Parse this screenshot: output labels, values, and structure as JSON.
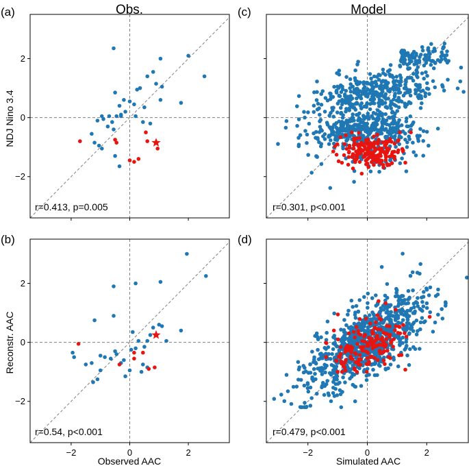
{
  "figure": {
    "column_titles": [
      "Obs.",
      "Model"
    ],
    "colors": {
      "blue": "#1f77b4",
      "red": "#e8140f",
      "axis": "#000000",
      "guide": "#7f7f7f"
    }
  },
  "chart_data": [
    {
      "panel": "(a)",
      "type": "scatter",
      "column_title": "Obs.",
      "xlabel": "",
      "ylabel": "NDJ Nino 3.4",
      "xlim": [
        -3.4,
        3.4
      ],
      "ylim": [
        -3.4,
        3.5
      ],
      "xticks": [
        -2,
        0,
        2
      ],
      "yticks": [
        -2,
        0,
        2
      ],
      "show_xticklabels": false,
      "stats": "r=0.413, p=0.005",
      "series": [
        {
          "name": "blue",
          "color": "#1f77b4",
          "points": [
            [
              -0.7,
              0.05
            ],
            [
              -0.45,
              0.05
            ],
            [
              -0.3,
              0.05
            ],
            [
              -0.9,
              -0.05
            ],
            [
              -1.1,
              -0.1
            ],
            [
              -0.6,
              -0.15
            ],
            [
              -0.75,
              -0.3
            ],
            [
              -0.55,
              -0.4
            ],
            [
              -1.3,
              -0.55
            ],
            [
              -1.2,
              -0.85
            ],
            [
              -1.05,
              -0.95
            ],
            [
              -0.95,
              -1.05
            ],
            [
              -0.5,
              -1.3
            ],
            [
              -0.35,
              -1.65
            ],
            [
              -0.5,
              0.85
            ],
            [
              -0.2,
              0.6
            ],
            [
              0.0,
              0.55
            ],
            [
              0.15,
              0.45
            ],
            [
              0.25,
              0.95
            ],
            [
              0.35,
              1.0
            ],
            [
              0.6,
              1.4
            ],
            [
              0.8,
              1.55
            ],
            [
              0.9,
              1.15
            ],
            [
              1.1,
              1.05
            ],
            [
              1.05,
              2.0
            ],
            [
              1.05,
              0.6
            ],
            [
              -0.3,
              0.1
            ],
            [
              -0.15,
              0.2
            ],
            [
              0.2,
              0.05
            ],
            [
              -0.55,
              2.35
            ],
            [
              0.45,
              -0.15
            ],
            [
              0.5,
              0.35
            ],
            [
              0.7,
              -0.2
            ],
            [
              1.75,
              0.5
            ],
            [
              2.0,
              2.1
            ],
            [
              2.55,
              1.4
            ],
            [
              -0.35,
              0.4
            ],
            [
              -0.95,
              0.05
            ]
          ]
        },
        {
          "name": "red",
          "color": "#e8140f",
          "points": [
            [
              -1.7,
              -0.8
            ],
            [
              -0.5,
              -0.75
            ],
            [
              -0.45,
              -0.85
            ],
            [
              0.0,
              -1.45
            ],
            [
              0.15,
              -1.5
            ],
            [
              0.3,
              -1.4
            ],
            [
              0.55,
              -0.5
            ],
            [
              0.6,
              -0.8
            ],
            [
              0.95,
              -1.05
            ]
          ],
          "stars": [
            [
              0.9,
              -0.85
            ]
          ]
        }
      ]
    },
    {
      "panel": "(c)",
      "type": "scatter",
      "column_title": "Model",
      "xlabel": "",
      "ylabel": "",
      "xlim": [
        -3.4,
        3.4
      ],
      "ylim": [
        -3.4,
        3.5
      ],
      "xticks": [
        -2,
        0,
        2
      ],
      "yticks": [
        -2,
        0,
        2
      ],
      "show_xticklabels": false,
      "stats": "r=0.301, p<0.001",
      "series": [
        {
          "name": "blue",
          "color": "#1f77b4",
          "count": 900,
          "description": "simulated ensemble points"
        },
        {
          "name": "red",
          "color": "#e8140f",
          "count": 170,
          "description": "highlighted La Nina years"
        }
      ]
    },
    {
      "panel": "(b)",
      "type": "scatter",
      "column_title": "",
      "xlabel": "Observed AAC",
      "ylabel": "Reconstr. AAC",
      "xlim": [
        -3.4,
        3.4
      ],
      "ylim": [
        -3.4,
        3.5
      ],
      "xticks": [
        -2,
        0,
        2
      ],
      "yticks": [
        -2,
        0,
        2
      ],
      "show_xticklabels": true,
      "stats": "r=0.54, p<0.001",
      "series": [
        {
          "name": "blue",
          "color": "#1f77b4",
          "points": [
            [
              -1.95,
              -0.35
            ],
            [
              -1.9,
              -0.5
            ],
            [
              -1.5,
              -0.75
            ],
            [
              -1.2,
              0.75
            ],
            [
              -1.3,
              -0.7
            ],
            [
              -1.1,
              -1.25
            ],
            [
              -1.25,
              -1.35
            ],
            [
              -1.0,
              -0.45
            ],
            [
              -0.85,
              -0.5
            ],
            [
              -0.55,
              1.9
            ],
            [
              -0.55,
              0.9
            ],
            [
              -0.45,
              -0.4
            ],
            [
              -0.2,
              -0.6
            ],
            [
              -0.3,
              -0.7
            ],
            [
              -0.15,
              -1.15
            ],
            [
              0.0,
              -0.95
            ],
            [
              0.2,
              2.0
            ],
            [
              0.2,
              -0.2
            ],
            [
              0.3,
              0.05
            ],
            [
              0.45,
              -0.75
            ],
            [
              0.5,
              -0.15
            ],
            [
              0.6,
              0.05
            ],
            [
              0.6,
              -0.85
            ],
            [
              0.7,
              0.25
            ],
            [
              0.8,
              0.5
            ],
            [
              1.0,
              0.6
            ],
            [
              1.05,
              2.05
            ],
            [
              1.1,
              0.55
            ],
            [
              1.25,
              0.05
            ],
            [
              1.75,
              0.4
            ],
            [
              1.95,
              3.0
            ],
            [
              2.6,
              2.25
            ],
            [
              -0.5,
              -0.3
            ],
            [
              -0.65,
              -0.55
            ],
            [
              0.05,
              -0.25
            ],
            [
              0.4,
              -1.0
            ],
            [
              -1.0,
              -0.95
            ],
            [
              0.1,
              0.35
            ]
          ]
        },
        {
          "name": "red",
          "color": "#e8140f",
          "points": [
            [
              -1.75,
              -0.05
            ],
            [
              -0.35,
              -0.75
            ],
            [
              0.15,
              -0.35
            ],
            [
              0.15,
              -0.55
            ],
            [
              0.45,
              -0.35
            ],
            [
              0.65,
              -0.9
            ],
            [
              0.85,
              -0.85
            ]
          ],
          "stars": [
            [
              0.9,
              0.25
            ]
          ]
        }
      ]
    },
    {
      "panel": "(d)",
      "type": "scatter",
      "column_title": "",
      "xlabel": "Simulated AAC",
      "ylabel": "",
      "xlim": [
        -3.4,
        3.4
      ],
      "ylim": [
        -3.4,
        3.5
      ],
      "xticks": [
        -2,
        0,
        2
      ],
      "yticks": [
        -2,
        0,
        2
      ],
      "show_xticklabels": true,
      "stats": "r=0.479, p<0.001",
      "series": [
        {
          "name": "blue",
          "color": "#1f77b4",
          "count": 900,
          "description": "simulated ensemble points"
        },
        {
          "name": "red",
          "color": "#e8140f",
          "count": 170,
          "description": "highlighted La Nina years"
        }
      ]
    }
  ]
}
